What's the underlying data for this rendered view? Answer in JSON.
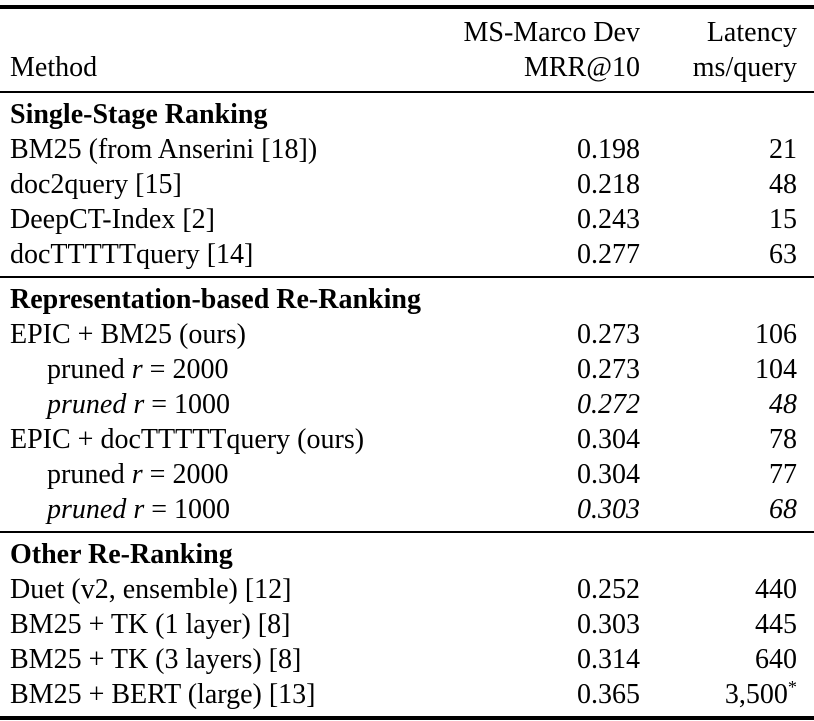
{
  "colors": {
    "text": "#000000",
    "background": "#ffffff",
    "rule": "#000000"
  },
  "table": {
    "header": {
      "method": "Method",
      "col2": {
        "line1": "MS-Marco Dev",
        "line2": "MRR@10"
      },
      "col3": {
        "line1": "Latency",
        "line2": "ms/query"
      }
    },
    "sections": [
      {
        "title": "Single-Stage Ranking",
        "rows": [
          {
            "method": "BM25 (from Anserini [18])",
            "mrr": "0.198",
            "latency": "21"
          },
          {
            "method": "doc2query [15]",
            "mrr": "0.218",
            "latency": "48"
          },
          {
            "method": "DeepCT-Index [2]",
            "mrr": "0.243",
            "latency": "15"
          },
          {
            "method": "docTTTTTquery [14]",
            "mrr": "0.277",
            "latency": "63"
          }
        ]
      },
      {
        "title": "Representation-based Re-Ranking",
        "rows": [
          {
            "method": "EPIC + BM25 (ours)",
            "mrr": "0.273",
            "latency": "106"
          },
          {
            "method_parts": {
              "prefix": "pruned ",
              "var": "r",
              "suffix": " = 2000"
            },
            "indent": true,
            "mrr": "0.273",
            "latency": "104"
          },
          {
            "method_parts": {
              "prefix": "pruned ",
              "var": "r",
              "suffix": " = 1000"
            },
            "indent": true,
            "italic": true,
            "mrr": "0.272",
            "latency": "48"
          },
          {
            "method": "EPIC + docTTTTTquery (ours)",
            "mrr": "0.304",
            "latency": "78"
          },
          {
            "method_parts": {
              "prefix": "pruned ",
              "var": "r",
              "suffix": " = 2000"
            },
            "indent": true,
            "mrr": "0.304",
            "latency": "77"
          },
          {
            "method_parts": {
              "prefix": "pruned ",
              "var": "r",
              "suffix": " = 1000"
            },
            "indent": true,
            "italic": true,
            "mrr": "0.303",
            "latency": "68"
          }
        ]
      },
      {
        "title": "Other Re-Ranking",
        "rows": [
          {
            "method": "Duet (v2, ensemble) [12]",
            "mrr": "0.252",
            "latency": "440"
          },
          {
            "method": "BM25 + TK (1 layer) [8]",
            "mrr": "0.303",
            "latency": "445"
          },
          {
            "method": "BM25 + TK (3 layers) [8]",
            "mrr": "0.314",
            "latency": "640"
          },
          {
            "method": "BM25 + BERT (large) [13]",
            "mrr": "0.365",
            "latency": "3,500",
            "latency_sup": "*"
          }
        ]
      }
    ]
  }
}
